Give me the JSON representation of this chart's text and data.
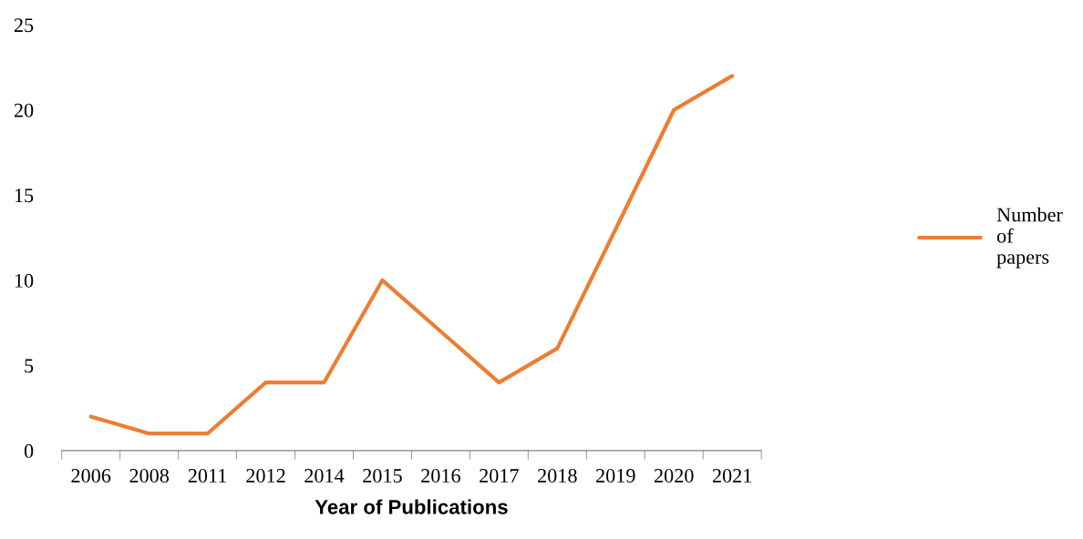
{
  "chart_data": {
    "type": "line",
    "xlabel": "Year of Publications",
    "categories": [
      "2006",
      "2008",
      "2011",
      "2012",
      "2014",
      "2015",
      "2016",
      "2017",
      "2018",
      "2019",
      "2020",
      "2021"
    ],
    "series": [
      {
        "name": "Number of papers",
        "color": "#ed7d31",
        "values": [
          2,
          1,
          1,
          4,
          4,
          10,
          7,
          4,
          6,
          13,
          20,
          22
        ]
      }
    ],
    "ylim": [
      0,
      25
    ],
    "yticks": [
      0,
      5,
      10,
      15,
      20,
      25
    ],
    "grid": false,
    "legend": "right",
    "marker": "none",
    "line_style": "solid"
  }
}
